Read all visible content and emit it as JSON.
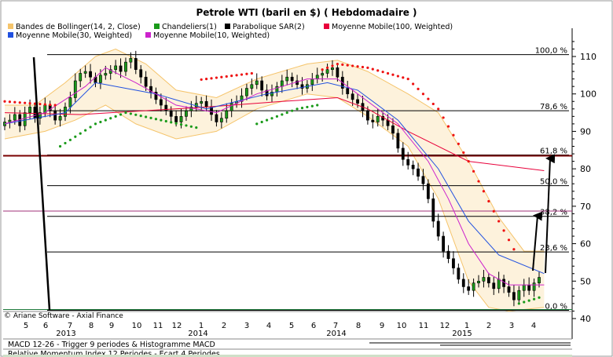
{
  "chart_data": {
    "type": "candlestick",
    "title": "Petrole WTI (baril en $)  ( Hebdomadaire )",
    "legend": {
      "placement": "top-left",
      "entries": [
        {
          "label": "Bandes de Bollinger(14, 2, Close)",
          "color": "#f5c46b"
        },
        {
          "label": "Chandeliers(1)",
          "color": "#1a9a1a"
        },
        {
          "label": "Parabolique SAR(2)",
          "color": "#000000"
        },
        {
          "label": "Moyenne Mobile(100, Weighted)",
          "color": "#e8003a"
        },
        {
          "label": "Moyenne Mobile(30, Weighted)",
          "color": "#2050e0"
        },
        {
          "label": "Moyenne Mobile(10, Weighted)",
          "color": "#cc22cc"
        }
      ]
    },
    "y_axis": {
      "ticks": [
        40,
        50,
        60,
        70,
        80,
        90,
        100,
        110
      ],
      "range": [
        40,
        116
      ],
      "side": "right"
    },
    "x_axis": {
      "month_labels": [
        "5",
        "6",
        "7",
        "8",
        "9",
        "10",
        "11",
        "12",
        "1",
        "2",
        "3",
        "4",
        "5",
        "6",
        "7",
        "8",
        "9",
        "10",
        "11",
        "12",
        "1",
        "2",
        "3",
        "4"
      ],
      "year_labels": [
        "2013",
        "2014",
        "2014",
        "2015"
      ]
    },
    "fibonacci": [
      {
        "label": "100,0 %",
        "value": 110.5
      },
      {
        "label": "78,6 %",
        "value": 95.5
      },
      {
        "label": "61,8 %",
        "value": 83.7
      },
      {
        "label": "50,0 %",
        "value": 75.5
      },
      {
        "label": "38,2 %",
        "value": 67.3
      },
      {
        "label": "23,6 %",
        "value": 57.8
      },
      {
        "label": "0,0 %",
        "value": 42.2
      }
    ],
    "horizontal_lines": [
      {
        "value": 83.5,
        "color": "#7a0000"
      },
      {
        "value": 68.7,
        "color": "#a0307a"
      },
      {
        "value": 42.4,
        "color": "#1e7a3c"
      }
    ],
    "candles_weekly_close": [
      92.5,
      93.0,
      94.5,
      91.5,
      95.0,
      96.5,
      93.5,
      95.0,
      97.0,
      95.5,
      93.0,
      94.0,
      96.5,
      99.0,
      103.5,
      105.5,
      106.0,
      104.5,
      103.0,
      105.0,
      105.5,
      106.5,
      107.5,
      106.0,
      108.5,
      109.5,
      106.5,
      104.5,
      102.0,
      100.5,
      98.5,
      97.0,
      95.5,
      94.0,
      92.5,
      94.0,
      95.5,
      96.5,
      97.5,
      98.0,
      96.5,
      94.5,
      92.5,
      93.5,
      95.5,
      97.5,
      98.0,
      99.5,
      101.5,
      102.5,
      103.5,
      101.0,
      99.5,
      100.5,
      102.0,
      103.5,
      104.5,
      103.5,
      102.5,
      101.5,
      102.5,
      104.0,
      105.0,
      105.5,
      106.5,
      107.0,
      104.5,
      101.5,
      100.0,
      98.5,
      97.5,
      95.5,
      93.0,
      92.5,
      94.0,
      93.0,
      91.5,
      89.5,
      85.5,
      82.5,
      81.0,
      80.0,
      78.0,
      76.0,
      72.0,
      66.0,
      62.0,
      58.0,
      56.0,
      53.5,
      50.5,
      48.5,
      47.5,
      49.5,
      50.0,
      51.0,
      49.5,
      48.0,
      50.5,
      48.5,
      47.0,
      45.0,
      47.5,
      49.0,
      47.5,
      49.5,
      51.0
    ],
    "sma100_weighted": [
      [
        0,
        95
      ],
      [
        15,
        94.5
      ],
      [
        40,
        96.5
      ],
      [
        55,
        98.0
      ],
      [
        66,
        99.0
      ],
      [
        72,
        96.0
      ],
      [
        80,
        90.0
      ],
      [
        92,
        82.0
      ],
      [
        107,
        79.5
      ]
    ],
    "sma30_weighted": [
      [
        0,
        92
      ],
      [
        12,
        95
      ],
      [
        18,
        103
      ],
      [
        30,
        100
      ],
      [
        40,
        96
      ],
      [
        52,
        100
      ],
      [
        64,
        103
      ],
      [
        70,
        101
      ],
      [
        78,
        93
      ],
      [
        86,
        80
      ],
      [
        92,
        66
      ],
      [
        98,
        57
      ],
      [
        107,
        52
      ]
    ],
    "sma10_weighted": [
      [
        0,
        92
      ],
      [
        8,
        95
      ],
      [
        16,
        102
      ],
      [
        20,
        107
      ],
      [
        26,
        103
      ],
      [
        34,
        97
      ],
      [
        42,
        95
      ],
      [
        50,
        100
      ],
      [
        60,
        104
      ],
      [
        66,
        104
      ],
      [
        70,
        100
      ],
      [
        78,
        92
      ],
      [
        84,
        82
      ],
      [
        88,
        72
      ],
      [
        92,
        60
      ],
      [
        96,
        52
      ],
      [
        100,
        49
      ],
      [
        107,
        49
      ]
    ],
    "bollinger_upper": [
      [
        0,
        97
      ],
      [
        6,
        97
      ],
      [
        12,
        103
      ],
      [
        18,
        110
      ],
      [
        22,
        112
      ],
      [
        28,
        108
      ],
      [
        34,
        101
      ],
      [
        42,
        99
      ],
      [
        50,
        104
      ],
      [
        60,
        108
      ],
      [
        66,
        109
      ],
      [
        72,
        106
      ],
      [
        80,
        100
      ],
      [
        86,
        95
      ],
      [
        92,
        82
      ],
      [
        98,
        67
      ],
      [
        103,
        58
      ],
      [
        107,
        58
      ]
    ],
    "bollinger_lower": [
      [
        0,
        88
      ],
      [
        8,
        90
      ],
      [
        14,
        93
      ],
      [
        20,
        97
      ],
      [
        26,
        92
      ],
      [
        34,
        88
      ],
      [
        42,
        90
      ],
      [
        50,
        96
      ],
      [
        60,
        100
      ],
      [
        66,
        99
      ],
      [
        72,
        94
      ],
      [
        80,
        86
      ],
      [
        86,
        72
      ],
      [
        92,
        50
      ],
      [
        96,
        43
      ],
      [
        100,
        42
      ],
      [
        107,
        43
      ]
    ],
    "parabolic_sar_above": [
      [
        0,
        98
      ],
      [
        10,
        97
      ],
      [
        22,
        108
      ],
      [
        34,
        103
      ],
      [
        52,
        106
      ],
      [
        62,
        106
      ],
      [
        66,
        108
      ],
      [
        72,
        107
      ],
      [
        80,
        104
      ],
      [
        86,
        96
      ],
      [
        92,
        82
      ],
      [
        98,
        66
      ],
      [
        102,
        56
      ],
      [
        107,
        53
      ]
    ],
    "parabolic_sar_below": [
      [
        11,
        86
      ],
      [
        18,
        92
      ],
      [
        24,
        95
      ],
      [
        38,
        91
      ],
      [
        50,
        92
      ],
      [
        58,
        96
      ],
      [
        62,
        97
      ],
      [
        102,
        44
      ],
      [
        107,
        46
      ]
    ],
    "annotations": [
      {
        "type": "arrow",
        "direction": "up",
        "color": "#000000"
      },
      {
        "type": "arrow",
        "direction": "up",
        "color": "#000000"
      },
      {
        "type": "trendline",
        "color": "#000000"
      }
    ],
    "copyright": "© Ariane Software - Axial Finance",
    "subpanels": [
      "MACD 12-26 - Trigger 9 periodes & Histogramme MACD",
      "Relative Momentum Index 12 Periodes - Ecart 4 Periodes"
    ]
  }
}
